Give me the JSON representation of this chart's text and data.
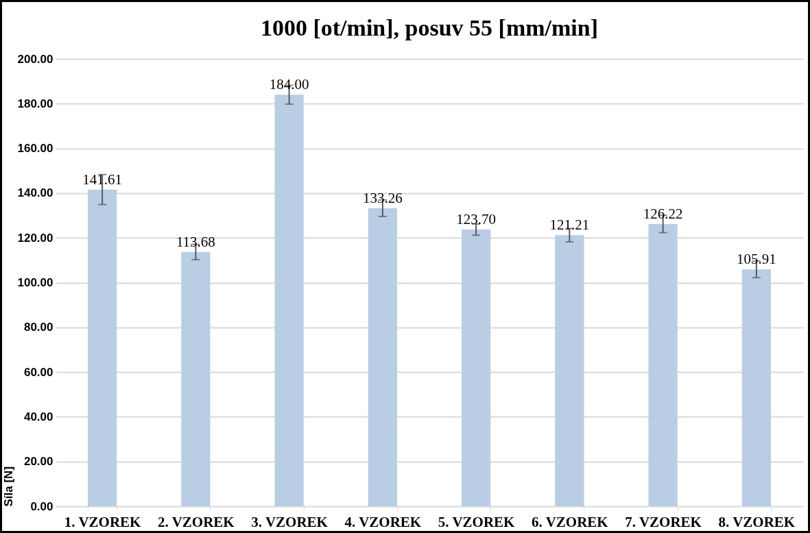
{
  "chart_data": {
    "type": "bar",
    "title": "1000 [ot/min], posuv 55 [mm/min]",
    "ylabel": "Síla [N]",
    "categories": [
      "1. VZOREK",
      "2. VZOREK",
      "3. VZOREK",
      "4. VZOREK",
      "5. VZOREK",
      "6. VZOREK",
      "7. VZOREK",
      "8. VZOREK"
    ],
    "values": [
      141.61,
      113.68,
      184.0,
      133.26,
      123.7,
      121.21,
      126.22,
      105.91
    ],
    "errors": [
      6.7,
      3.4,
      4.2,
      3.7,
      2.5,
      3.0,
      3.9,
      3.7
    ],
    "color": "#b9cde5",
    "ylim": [
      0,
      200
    ],
    "yticks": [
      {
        "value": 0,
        "label": "0.00"
      },
      {
        "value": 20,
        "label": "20.00"
      },
      {
        "value": 40,
        "label": "40.00"
      },
      {
        "value": 60,
        "label": "60.00"
      },
      {
        "value": 80,
        "label": "80.00"
      },
      {
        "value": 100,
        "label": "100.00"
      },
      {
        "value": 120,
        "label": "120.00"
      },
      {
        "value": 140,
        "label": "140.00"
      },
      {
        "value": 160,
        "label": "160.00"
      },
      {
        "value": 180,
        "label": "180.00"
      },
      {
        "value": 200,
        "label": "200.00"
      }
    ],
    "value_labels": [
      "141.61",
      "113.68",
      "184.00",
      "133.26",
      "123.70",
      "121.21",
      "126.22",
      "105.91"
    ],
    "grid": true
  }
}
